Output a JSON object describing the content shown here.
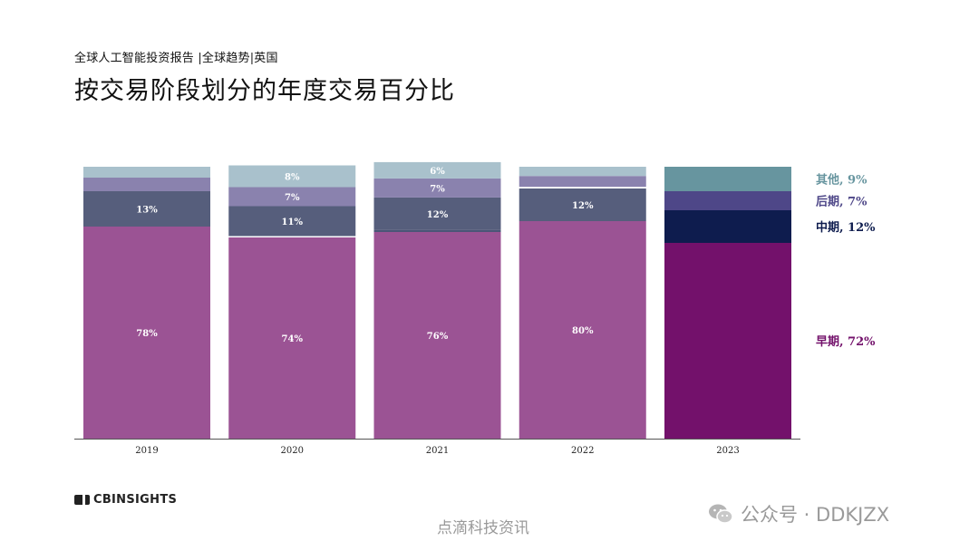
{
  "header": {
    "subtitle": "全球人工智能投资报告 |全球趋势|英国",
    "title": "按交易阶段划分的年度交易百分比"
  },
  "footer": {
    "logo_text": "CBINSIGHTS",
    "source_text": "点滴科技资讯",
    "wechat_text": "公众号 · DDKJZX"
  },
  "chart_data": {
    "type": "bar",
    "stacked": true,
    "categories": [
      "2019",
      "2020",
      "2021",
      "2022",
      "2023"
    ],
    "ylim": [
      0,
      100
    ],
    "series": [
      {
        "name": "早期",
        "values": [
          78,
          74,
          76,
          80,
          72
        ],
        "colors": [
          "#9b5394",
          "#9b5394",
          "#9b5394",
          "#9b5394",
          "#73116b"
        ],
        "labels": [
          "78%",
          "74%",
          "76%",
          "80%",
          ""
        ]
      },
      {
        "name": "",
        "values": [
          0,
          0.5,
          0.7,
          0,
          0
        ],
        "colors": [
          "#ffffff",
          "#ffffff",
          "#4b5577",
          "#ffffff",
          "#ffffff"
        ],
        "labels": [
          "",
          "",
          "",
          "",
          ""
        ]
      },
      {
        "name": "中期",
        "values": [
          13,
          11,
          12,
          12,
          12
        ],
        "colors": [
          "#565e7c",
          "#565e7c",
          "#565e7c",
          "#565e7c",
          "#0e1c4e"
        ],
        "labels": [
          "13%",
          "11%",
          "12%",
          "12%",
          ""
        ]
      },
      {
        "name": "",
        "values": [
          0,
          0,
          0,
          0.6,
          0
        ],
        "colors": [
          "#ffffff",
          "#ffffff",
          "#ffffff",
          "#ffffff",
          "#ffffff"
        ],
        "labels": [
          "",
          "",
          "",
          "",
          ""
        ]
      },
      {
        "name": "后期",
        "values": [
          5,
          7,
          7,
          4,
          7
        ],
        "colors": [
          "#8a82ae",
          "#8a82ae",
          "#8a82ae",
          "#8a82ae",
          "#4e4788"
        ],
        "labels": [
          "",
          "7%",
          "7%",
          "",
          ""
        ]
      },
      {
        "name": "其他",
        "values": [
          4,
          8,
          6,
          3.4,
          9
        ],
        "colors": [
          "#a9c1cc",
          "#a9c1cc",
          "#a9c1cc",
          "#a9c1cc",
          "#67959f"
        ],
        "labels": [
          "",
          "8%",
          "6%",
          "",
          ""
        ]
      }
    ],
    "legend": [
      {
        "label": "其他, 9%",
        "color": "#67959f",
        "value": 9
      },
      {
        "label": "后期, 7%",
        "color": "#4e4788",
        "value": 7
      },
      {
        "label": "中期, 12%",
        "color": "#0e1c4e",
        "value": 12
      },
      {
        "label": "早期, 72%",
        "color": "#73116b",
        "value": 72
      }
    ],
    "legend_placement": "right",
    "grid": false
  }
}
